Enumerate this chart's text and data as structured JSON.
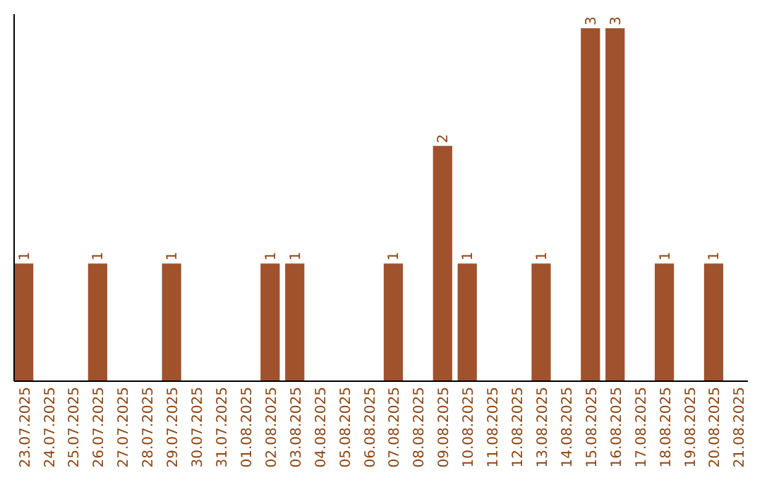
{
  "chart_data": {
    "type": "bar",
    "categories": [
      "23.07.2025",
      "24.07.2025",
      "25.07.2025",
      "26.07.2025",
      "27.07.2025",
      "28.07.2025",
      "29.07.2025",
      "30.07.2025",
      "31.07.2025",
      "01.08.2025",
      "02.08.2025",
      "03.08.2025",
      "04.08.2025",
      "05.08.2025",
      "06.08.2025",
      "07.08.2025",
      "08.08.2025",
      "09.08.2025",
      "10.08.2025",
      "11.08.2025",
      "12.08.2025",
      "13.08.2025",
      "14.08.2025",
      "15.08.2025",
      "16.08.2025",
      "17.08.2025",
      "18.08.2025",
      "19.08.2025",
      "20.08.2025",
      "21.08.2025"
    ],
    "values": [
      1,
      0,
      0,
      1,
      0,
      0,
      1,
      0,
      0,
      0,
      1,
      1,
      0,
      0,
      0,
      1,
      0,
      2,
      1,
      0,
      0,
      1,
      0,
      3,
      3,
      0,
      1,
      0,
      1,
      0
    ],
    "value_labels": [
      "1",
      null,
      null,
      "1",
      null,
      null,
      "1",
      null,
      null,
      null,
      "1",
      "1",
      null,
      null,
      null,
      "1",
      null,
      "2",
      "1",
      null,
      null,
      "1",
      null,
      "3",
      "3",
      null,
      "1",
      null,
      "1",
      null
    ],
    "color": "#a0522d",
    "ylim": [
      0,
      3
    ],
    "tick_labels": "x",
    "grid": false
  }
}
